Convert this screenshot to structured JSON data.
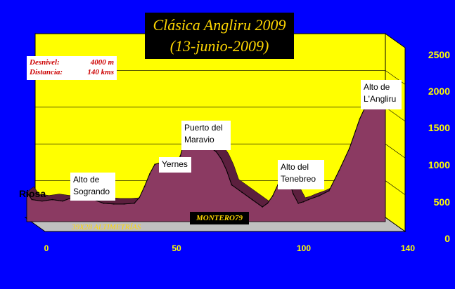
{
  "chart_data": {
    "type": "area",
    "title": "Clásica Angliru 2009",
    "subtitle": "(13-junio-2009)",
    "xlabel": "",
    "ylabel": "",
    "xlim": [
      0,
      140
    ],
    "ylim": [
      0,
      2500
    ],
    "x_ticks": [
      "0",
      "50",
      "100",
      "140"
    ],
    "y_ticks": [
      "0",
      "500",
      "1000",
      "1500",
      "2000",
      "2500"
    ],
    "grid": false,
    "series": [
      {
        "x": [
          0,
          2,
          6,
          10,
          14,
          18,
          20,
          22,
          24,
          26,
          30,
          34,
          38,
          42,
          44,
          46,
          48,
          50,
          52,
          54,
          56,
          58,
          60,
          62,
          64,
          66,
          68,
          70,
          72,
          74,
          76,
          78,
          80,
          84,
          88,
          92,
          94,
          96,
          98,
          100,
          102,
          104,
          106,
          108,
          110,
          114,
          118,
          122,
          126,
          130,
          134,
          136,
          137,
          138,
          140
        ],
        "y": [
          400,
          300,
          280,
          300,
          280,
          330,
          400,
          430,
          380,
          300,
          250,
          240,
          240,
          250,
          330,
          480,
          650,
          780,
          800,
          720,
          800,
          750,
          900,
          1150,
          1250,
          1000,
          1150,
          1120,
          1000,
          950,
          850,
          700,
          500,
          400,
          300,
          200,
          250,
          350,
          500,
          680,
          600,
          380,
          250,
          270,
          300,
          350,
          420,
          700,
          1000,
          1400,
          1700,
          1800,
          1850,
          1820,
          1680
        ]
      }
    ],
    "annotations": [
      {
        "text": "Riosa"
      },
      {
        "text": "Alto de Sogrando",
        "lines": [
          "Alto de",
          "Sogrando"
        ]
      },
      {
        "text": "Yernes",
        "lines": [
          "Yernes"
        ]
      },
      {
        "text": "Puerto del Maravio",
        "lines": [
          "Puerto del",
          "Maravio"
        ]
      },
      {
        "text": "Alto del Tenebreo",
        "lines": [
          "Alto del",
          "Tenebreo"
        ]
      },
      {
        "text": "Alto de L'Angliru",
        "lines": [
          "Alto de",
          "L'Angliru"
        ]
      }
    ]
  },
  "info": {
    "desnivel_label": "Desnivel:",
    "desnivel_value": "4000 m",
    "distancia_label": "Distancia:",
    "distancia_value": "140 kms"
  },
  "author": "MONTERO79",
  "credit": "39X28 ALTIMETRÍAS",
  "colors": {
    "background": "#0000ff",
    "wall": "#ffff00",
    "floor": "#c0c0c0",
    "area_fill": "#8b3a62",
    "area_shade": "#5c1f3e",
    "tick_text": "#ffff00",
    "title_text": "#ffd700"
  }
}
